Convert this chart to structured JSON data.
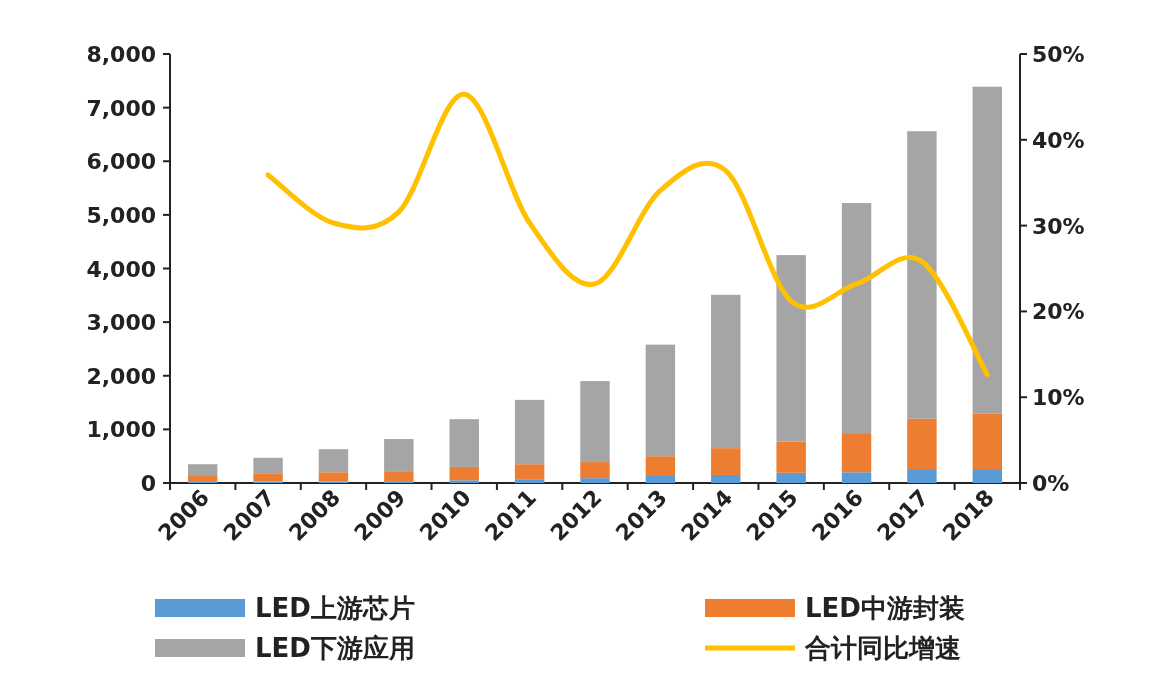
{
  "chart_data": {
    "type": "bar",
    "stacked": true,
    "categories": [
      "2006",
      "2007",
      "2008",
      "2009",
      "2010",
      "2011",
      "2012",
      "2013",
      "2014",
      "2015",
      "2016",
      "2017",
      "2018"
    ],
    "series": [
      {
        "name": "LED上游芯片",
        "color": "#5b9bd5",
        "values": [
          20,
          25,
          30,
          35,
          50,
          70,
          90,
          130,
          150,
          190,
          200,
          260,
          260
        ]
      },
      {
        "name": "LED中游封装",
        "color": "#ed7d31",
        "values": [
          110,
          145,
          170,
          185,
          250,
          280,
          300,
          370,
          500,
          580,
          730,
          940,
          1030
        ]
      },
      {
        "name": "LED下游应用",
        "color": "#a5a5a5",
        "values": [
          220,
          300,
          430,
          600,
          890,
          1200,
          1510,
          2080,
          2860,
          3480,
          4290,
          5360,
          6100
        ]
      },
      {
        "name": "合计同比增速",
        "type": "line",
        "axis": "y2",
        "color": "#ffc000",
        "values": [
          null,
          35.9,
          30.3,
          31.6,
          45.3,
          30.3,
          23.2,
          34.1,
          36.4,
          21.2,
          23.2,
          25.8,
          12.6
        ]
      }
    ],
    "ylim": [
      0,
      8000
    ],
    "yticks": [
      {
        "value": 0,
        "label": "0"
      },
      {
        "value": 1000,
        "label": "1,000"
      },
      {
        "value": 2000,
        "label": "2,000"
      },
      {
        "value": 3000,
        "label": "3,000"
      },
      {
        "value": 4000,
        "label": "4,000"
      },
      {
        "value": 5000,
        "label": "5,000"
      },
      {
        "value": 6000,
        "label": "6,000"
      },
      {
        "value": 7000,
        "label": "7,000"
      },
      {
        "value": 8000,
        "label": "8,000"
      }
    ],
    "y2lim": [
      0,
      50
    ],
    "y2ticks": [
      {
        "value": 0,
        "label": "0%"
      },
      {
        "value": 10,
        "label": "10%"
      },
      {
        "value": 20,
        "label": "20%"
      },
      {
        "value": 30,
        "label": "30%"
      },
      {
        "value": 40,
        "label": "40%"
      },
      {
        "value": 50,
        "label": "50%"
      }
    ],
    "legend": "bottom"
  }
}
